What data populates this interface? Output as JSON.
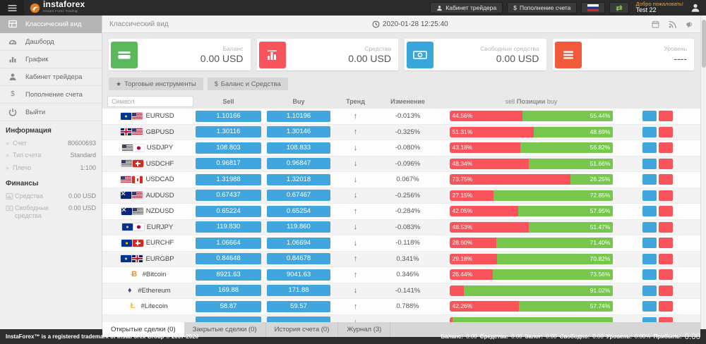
{
  "colors": {
    "accent_blue": "#41a6dd",
    "bar_green": "#77c64d",
    "bar_red": "#f9545b",
    "trend_up": "#2d9c2d",
    "trend_down": "#c43c2c"
  },
  "topbar": {
    "brand": "instaforex",
    "tagline": "Instant Forex Trading",
    "cabinet_label": "Кабинет трейдера",
    "deposit_label": "Пополнение счета",
    "welcome": "Добро пожаловать!",
    "username": "Test 22"
  },
  "sidebar": {
    "menu": [
      {
        "label": "Классический вид",
        "icon": "classic-view-icon",
        "active": true
      },
      {
        "label": "Дашборд",
        "icon": "dashboard-icon",
        "active": false
      },
      {
        "label": "График",
        "icon": "chart-icon",
        "active": false
      },
      {
        "label": "Кабинет трейдера",
        "icon": "user-icon",
        "active": false
      },
      {
        "label": "Пополнение счета",
        "icon": "dollar-icon",
        "active": false
      },
      {
        "label": "Выйти",
        "icon": "power-icon",
        "active": false
      }
    ],
    "info_title": "Информация",
    "info": [
      {
        "label": "Счет",
        "value": "80600693"
      },
      {
        "label": "Тип счета",
        "value": "Standard"
      },
      {
        "label": "Плечо",
        "value": "1:100"
      }
    ],
    "finance_title": "Финансы",
    "finance": [
      {
        "label": "Средства",
        "value": "0.00 USD",
        "icon": "equity-icon"
      },
      {
        "label": "Свободные средства",
        "value": "0.00 USD",
        "icon": "free-margin-icon"
      }
    ]
  },
  "header": {
    "title": "Классический вид",
    "timestamp": "2020-01-28 12:25:40"
  },
  "cards": [
    {
      "label": "Баланс",
      "value": "0.00 USD",
      "icon": "credit-card-icon",
      "color": "#5cb85c"
    },
    {
      "label": "Средства",
      "value": "0.00 USD",
      "icon": "bar-chart-icon",
      "color": "#f9545b"
    },
    {
      "label": "Свободные средства",
      "value": "0.00 USD",
      "icon": "banknote-icon",
      "color": "#3aa7dc"
    },
    {
      "label": "Уровень",
      "value": "----",
      "icon": "list-icon",
      "color": "#f0593a"
    }
  ],
  "toolbar": {
    "instruments_label": "Торговые инструменты",
    "balance_label": "Баланс и Средства"
  },
  "table": {
    "search_placeholder": "Символ",
    "headers": {
      "sell": "Sell",
      "buy": "Buy",
      "trend": "Тренд",
      "change": "Изменение",
      "positions_left": "sell",
      "positions_center": "Позиции",
      "positions_right": "buy"
    },
    "rows": [
      {
        "symbol": "EURUSD",
        "flags": [
          "eu",
          "us"
        ],
        "sell": "1.10166",
        "buy": "1.10196",
        "trend": "up",
        "change": "-0.013%",
        "sell_pct": 44.56,
        "sell_label": "44.56%",
        "buy_label": "55.44%"
      },
      {
        "symbol": "GBPUSD",
        "flags": [
          "gb",
          "us"
        ],
        "sell": "1.30116",
        "buy": "1.30146",
        "trend": "up",
        "change": "-0.325%",
        "sell_pct": 51.31,
        "sell_label": "51.31%",
        "buy_label": "48.69%"
      },
      {
        "symbol": "USDJPY",
        "flags": [
          "us",
          "jp"
        ],
        "sell": "108.803",
        "buy": "108.833",
        "trend": "down",
        "change": "-0.080%",
        "sell_pct": 43.18,
        "sell_label": "43.18%",
        "buy_label": "56.82%"
      },
      {
        "symbol": "USDCHF",
        "flags": [
          "us",
          "ch"
        ],
        "sell": "0.96817",
        "buy": "0.96847",
        "trend": "down",
        "change": "-0.096%",
        "sell_pct": 48.34,
        "sell_label": "48.34%",
        "buy_label": "51.66%"
      },
      {
        "symbol": "USDCAD",
        "flags": [
          "us",
          "ca"
        ],
        "sell": "1.31988",
        "buy": "1.32018",
        "trend": "down",
        "change": "0.067%",
        "sell_pct": 73.75,
        "sell_label": "73.75%",
        "buy_label": "26.25%"
      },
      {
        "symbol": "AUDUSD",
        "flags": [
          "au",
          "us"
        ],
        "sell": "0.67437",
        "buy": "0.67467",
        "trend": "down",
        "change": "-0.256%",
        "sell_pct": 27.15,
        "sell_label": "27.15%",
        "buy_label": "72.85%"
      },
      {
        "symbol": "NZDUSD",
        "flags": [
          "nz",
          "us"
        ],
        "sell": "0.65224",
        "buy": "0.65254",
        "trend": "up",
        "change": "-0.284%",
        "sell_pct": 42.05,
        "sell_label": "42.05%",
        "buy_label": "57.95%"
      },
      {
        "symbol": "EURJPY",
        "flags": [
          "eu",
          "jp"
        ],
        "sell": "119.830",
        "buy": "119.860",
        "trend": "down",
        "change": "-0.083%",
        "sell_pct": 48.53,
        "sell_label": "48.53%",
        "buy_label": "51.47%"
      },
      {
        "symbol": "EURCHF",
        "flags": [
          "eu",
          "ch"
        ],
        "sell": "1.06664",
        "buy": "1.06694",
        "trend": "down",
        "change": "-0.118%",
        "sell_pct": 28.6,
        "sell_label": "28.60%",
        "buy_label": "71.40%"
      },
      {
        "symbol": "EURGBP",
        "flags": [
          "eu",
          "gb"
        ],
        "sell": "0.84648",
        "buy": "0.84678",
        "trend": "up",
        "change": "0.341%",
        "sell_pct": 29.18,
        "sell_label": "29.18%",
        "buy_label": "70.82%"
      },
      {
        "symbol": "#Bitcoin",
        "icon_char": "Ƀ",
        "icon_color": "#f7931a",
        "sell": "8921.63",
        "buy": "9041.63",
        "trend": "up",
        "change": "0.346%",
        "sell_pct": 26.44,
        "sell_label": "26.44%",
        "buy_label": "73.56%"
      },
      {
        "symbol": "#Ethereum",
        "icon_char": "♦",
        "icon_color": "#454a75",
        "sell": "169.88",
        "buy": "171.88",
        "trend": "down",
        "change": "-0.141%",
        "sell_pct": 8.98,
        "sell_label": "",
        "buy_label": "91.02%"
      },
      {
        "symbol": "#Litecoin",
        "icon_char": "Ł",
        "icon_color": "#f5b93c",
        "sell": "58.87",
        "buy": "59.57",
        "trend": "up",
        "change": "0.788%",
        "sell_pct": 42.26,
        "sell_label": "42.26%",
        "buy_label": "57.74%"
      },
      {
        "symbol": "",
        "partial": true,
        "sell": "",
        "buy": "",
        "trend": "down",
        "change": "",
        "sell_pct": 2,
        "sell_label": "",
        "buy_label": ""
      }
    ]
  },
  "tabs": [
    {
      "label": "Открытые сделки (0)",
      "active": true
    },
    {
      "label": "Закрытые сделки (0)",
      "active": false
    },
    {
      "label": "История счета (0)",
      "active": false
    },
    {
      "label": "Журнал (3)",
      "active": false
    }
  ],
  "footer": {
    "copyright": "InstaForex™ is a registered trademark of InstaForex Group © 2007-2020",
    "stats": [
      {
        "label": "Баланс:",
        "value": "0.00",
        "big": false
      },
      {
        "label": "Средства:",
        "value": "0.00",
        "big": false
      },
      {
        "label": "Залог:",
        "value": "0.00",
        "big": false
      },
      {
        "label": "Свободно:",
        "value": "0.00",
        "big": false
      },
      {
        "label": "Уровень:",
        "value": "0.00%",
        "big": false
      },
      {
        "label": "Прибыль:",
        "value": "0.00",
        "big": true
      }
    ]
  }
}
